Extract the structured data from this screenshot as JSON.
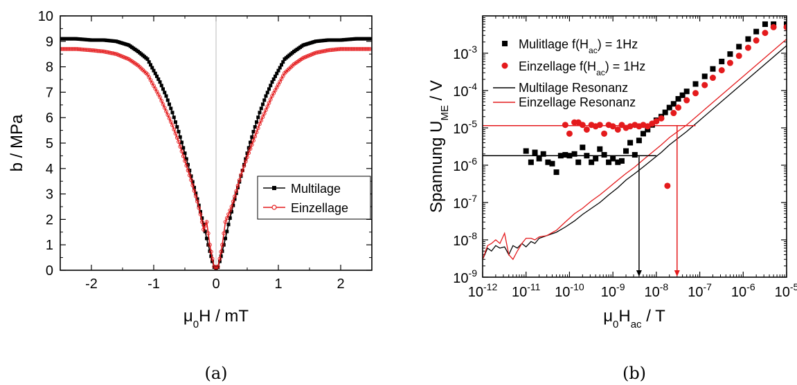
{
  "chart_data": [
    {
      "type": "line",
      "panel_label": "(a)",
      "xlabel": "μ0H / mT",
      "ylabel": "b / MPa",
      "xlim": [
        -2.5,
        2.5
      ],
      "ylim": [
        0,
        10
      ],
      "xticks": [
        -2,
        -1,
        0,
        1,
        2
      ],
      "yticks": [
        0,
        1,
        2,
        3,
        4,
        5,
        6,
        7,
        8,
        9,
        10
      ],
      "grid": false,
      "zero_lines": true,
      "legend_position": "lower-right",
      "series": [
        {
          "name": "Multilage",
          "color": "#000000",
          "marker": "square",
          "x": [
            -2.5,
            -2.25,
            -2.0,
            -1.8,
            -1.6,
            -1.4,
            -1.25,
            -1.1,
            -1.0,
            -0.9,
            -0.8,
            -0.7,
            -0.6,
            -0.5,
            -0.4,
            -0.3,
            -0.25,
            -0.2,
            -0.15,
            -0.1,
            -0.06,
            -0.03,
            0.0,
            0.03,
            0.06,
            0.1,
            0.15,
            0.2,
            0.25,
            0.3,
            0.4,
            0.5,
            0.6,
            0.7,
            0.8,
            0.9,
            1.0,
            1.1,
            1.25,
            1.4,
            1.6,
            1.8,
            2.0,
            2.25,
            2.5
          ],
          "y": [
            9.1,
            9.1,
            9.05,
            9.05,
            9.0,
            8.85,
            8.6,
            8.3,
            7.85,
            7.4,
            6.85,
            6.2,
            5.45,
            4.6,
            3.7,
            2.8,
            2.3,
            1.8,
            1.25,
            0.75,
            0.35,
            0.12,
            0.05,
            0.12,
            0.35,
            0.75,
            1.25,
            1.8,
            2.3,
            2.8,
            3.7,
            4.6,
            5.45,
            6.2,
            6.85,
            7.4,
            7.85,
            8.3,
            8.6,
            8.85,
            9.0,
            9.05,
            9.05,
            9.1,
            9.1
          ]
        },
        {
          "name": "Einzellage",
          "color": "#e41a1c",
          "marker": "open-circle",
          "x": [
            -2.5,
            -2.25,
            -2.0,
            -1.8,
            -1.6,
            -1.4,
            -1.25,
            -1.1,
            -1.0,
            -0.9,
            -0.8,
            -0.7,
            -0.6,
            -0.5,
            -0.4,
            -0.3,
            -0.25,
            -0.2,
            -0.15,
            -0.1,
            -0.06,
            -0.03,
            0.0,
            0.03,
            0.06,
            0.1,
            0.15,
            0.2,
            0.25,
            0.3,
            0.4,
            0.5,
            0.6,
            0.7,
            0.8,
            0.9,
            1.0,
            1.1,
            1.25,
            1.4,
            1.6,
            1.8,
            2.0,
            2.25,
            2.5
          ],
          "y": [
            8.7,
            8.7,
            8.65,
            8.6,
            8.5,
            8.3,
            8.05,
            7.7,
            7.25,
            6.8,
            6.25,
            5.7,
            5.05,
            4.3,
            3.55,
            2.7,
            2.2,
            1.6,
            1.9,
            1.0,
            0.45,
            0.15,
            0.05,
            0.15,
            0.45,
            1.0,
            1.9,
            2.2,
            2.5,
            2.9,
            3.75,
            4.45,
            5.1,
            5.75,
            6.3,
            6.85,
            7.3,
            7.75,
            8.1,
            8.35,
            8.55,
            8.65,
            8.7,
            8.7,
            8.7
          ]
        }
      ]
    },
    {
      "type": "scatter",
      "panel_label": "(b)",
      "xlabel": "μ0Hac / T",
      "ylabel": "Spannung UME / V",
      "xscale": "log",
      "yscale": "log",
      "xlim": [
        1e-12,
        1e-05
      ],
      "ylim": [
        1e-09,
        0.01
      ],
      "xtick_exponents": [
        -12,
        -11,
        -10,
        -9,
        -8,
        -7,
        -6,
        -5
      ],
      "ytick_exponents": [
        -9,
        -8,
        -7,
        -6,
        -5,
        -4,
        -3
      ],
      "grid": false,
      "legend_position": "top-left",
      "series": [
        {
          "name": "Mulitlage f(Hac) = 1Hz",
          "color": "#000000",
          "marker": "filled-square",
          "x": [
            1e-11,
            1.3e-11,
            1.6e-11,
            2e-11,
            2.5e-11,
            3.2e-11,
            4e-11,
            5e-11,
            6.3e-11,
            8e-11,
            1e-10,
            1.3e-10,
            1.6e-10,
            2e-10,
            2.5e-10,
            3.2e-10,
            4e-10,
            5e-10,
            6.3e-10,
            8e-10,
            1e-09,
            1.3e-09,
            1.6e-09,
            2e-09,
            2.5e-09,
            3.2e-09,
            4e-09,
            5e-09,
            6.3e-09,
            8e-09,
            1e-08,
            1.3e-08,
            1.6e-08,
            2e-08,
            2.5e-08,
            3.2e-08,
            4e-08,
            5e-08,
            8e-08,
            1.3e-07,
            2e-07,
            3.2e-07,
            5e-07,
            8e-07,
            1.3e-06,
            2e-06,
            3.2e-06,
            5e-06,
            1e-05
          ],
          "y": [
            2.4e-06,
            1.2e-06,
            2.2e-06,
            1.5e-06,
            2e-06,
            1.2e-06,
            1.1e-06,
            6.5e-07,
            1.8e-06,
            1.9e-06,
            1.8e-06,
            2e-06,
            1.2e-06,
            3e-06,
            1.8e-06,
            1.2e-06,
            1.5e-06,
            2.7e-06,
            1.9e-06,
            1.2e-06,
            1.5e-06,
            1.2e-06,
            1.3e-06,
            2.4e-06,
            4e-06,
            1.9e-06,
            4.6e-06,
            7e-06,
            9e-06,
            1.2e-05,
            1.6e-05,
            2e-05,
            2.6e-05,
            3.5e-05,
            4.4e-05,
            6e-05,
            7.5e-05,
            9.5e-05,
            0.00015,
            0.00024,
            0.00038,
            0.0006,
            0.00095,
            0.0015,
            0.0024,
            0.0038,
            0.006,
            0.006,
            0.006
          ]
        },
        {
          "name": "Einzellage f(Hac) = 1Hz",
          "color": "#e41a1c",
          "marker": "filled-circle",
          "x": [
            8e-11,
            1e-10,
            1.3e-10,
            1.6e-10,
            2e-10,
            2.5e-10,
            3.2e-10,
            4e-10,
            5e-10,
            6.3e-10,
            8e-10,
            1e-09,
            1.3e-09,
            1.6e-09,
            2e-09,
            2.5e-09,
            3.2e-09,
            4e-09,
            5e-09,
            6.3e-09,
            8e-09,
            1e-08,
            1.3e-08,
            1.8e-08,
            2.5e-08,
            3.2e-08,
            5e-08,
            8e-08,
            1.3e-07,
            2e-07,
            3.2e-07,
            5e-07,
            8e-07,
            1.3e-06,
            2e-06,
            3.2e-06,
            5e-06,
            1e-05
          ],
          "y": [
            1.2e-05,
            7e-06,
            1.4e-05,
            1.4e-05,
            1.2e-05,
            9e-06,
            1.2e-05,
            1.1e-05,
            1.2e-05,
            7e-06,
            1.2e-05,
            1.1e-05,
            9e-06,
            1.2e-05,
            1e-05,
            1.1e-05,
            1.2e-05,
            1.1e-05,
            1.2e-05,
            1.1e-05,
            1.3e-05,
            1.5e-05,
            1.8e-05,
            2.8e-07,
            2.5e-05,
            3.5e-05,
            5.5e-05,
            8.5e-05,
            0.00014,
            0.00022,
            0.00035,
            0.00055,
            0.00085,
            0.0014,
            0.0022,
            0.0035,
            0.005,
            0.005
          ]
        },
        {
          "name": "Multilage Resonanz",
          "color": "#000000",
          "marker": "none",
          "x": [
            1e-12,
            1.3e-12,
            1.6e-12,
            2e-12,
            2.5e-12,
            3.2e-12,
            4e-12,
            5e-12,
            6.3e-12,
            8e-12,
            1e-11,
            1.3e-11,
            1.6e-11,
            2e-11,
            3e-11,
            5e-11,
            8e-11,
            1.3e-10,
            2e-10,
            3.2e-10,
            5e-10,
            8e-10,
            1.3e-09,
            2e-09,
            3.2e-09,
            5e-09,
            8e-09,
            1.3e-08,
            2e-08,
            5e-08,
            1e-07,
            1e-06,
            1e-05
          ],
          "y": [
            3e-09,
            6e-09,
            5e-09,
            7e-09,
            6e-09,
            6.5e-09,
            4e-09,
            7e-09,
            6e-09,
            8e-09,
            6.5e-09,
            9e-09,
            8e-09,
            1.1e-08,
            1.3e-08,
            1.6e-08,
            2.2e-08,
            3.2e-08,
            4.8e-08,
            7e-08,
            1e-07,
            1.6e-07,
            2.5e-07,
            4e-07,
            6e-07,
            9e-07,
            1.4e-06,
            2.2e-06,
            3.5e-06,
            8e-06,
            1.6e-05,
            0.00016,
            0.0016
          ]
        },
        {
          "name": "Einzellage Resonanz",
          "color": "#e41a1c",
          "marker": "none",
          "x": [
            1e-12,
            1.3e-12,
            1.6e-12,
            2e-12,
            2.5e-12,
            3.2e-12,
            4e-12,
            5e-12,
            6.3e-12,
            8e-12,
            1e-11,
            1.3e-11,
            1.6e-11,
            2e-11,
            3e-11,
            5e-11,
            8e-11,
            1.3e-10,
            2e-10,
            3.2e-10,
            5e-10,
            8e-10,
            1.3e-09,
            2e-09,
            3.2e-09,
            5e-09,
            8e-09,
            1.3e-08,
            2e-08,
            5e-08,
            1e-07,
            1e-06,
            1e-05
          ],
          "y": [
            3e-09,
            7e-09,
            8e-09,
            1e-08,
            8e-09,
            1.5e-08,
            4e-09,
            3e-09,
            5e-09,
            8e-09,
            1.1e-08,
            1.1e-08,
            1e-08,
            1.2e-08,
            1.3e-08,
            1.8e-08,
            3e-08,
            5e-08,
            7e-08,
            1.1e-07,
            1.6e-07,
            2.5e-07,
            4e-07,
            6e-07,
            9e-07,
            1.4e-06,
            2.2e-06,
            3.5e-06,
            5.5e-06,
            1.2e-05,
            2.4e-05,
            0.00024,
            0.0024
          ]
        }
      ],
      "reference_lines": [
        {
          "color": "#000000",
          "value": 1.8e-06,
          "from": 1e-12,
          "to": 1e-08
        },
        {
          "color": "#e41a1c",
          "value": 1.15e-05,
          "from": 1e-12,
          "to": 8e-08
        }
      ],
      "arrows": [
        {
          "color": "#000000",
          "x": 4e-09,
          "y_from": 1.8e-06,
          "y_to": 1e-09
        },
        {
          "color": "#e41a1c",
          "x": 3e-08,
          "y_from": 1.15e-05,
          "y_to": 1e-09
        }
      ]
    }
  ]
}
